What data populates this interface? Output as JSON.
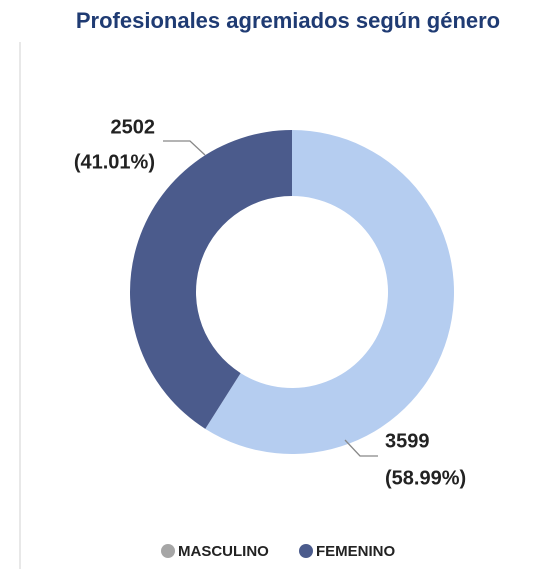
{
  "chart_data": {
    "type": "donut",
    "title": "Profesionales agremiados según género",
    "categories": [
      "MASCULINO",
      "FEMENINO"
    ],
    "values": [
      3599,
      2502
    ],
    "percentages": [
      58.99,
      41.01
    ],
    "percentage_labels": [
      "(58.99%)",
      "(41.01%)"
    ],
    "colors": [
      "#b5cdf0",
      "#4b5b8c"
    ],
    "legend_colors": [
      "#a6a6a6",
      "#4b5b8c"
    ],
    "legend": "bottom"
  }
}
